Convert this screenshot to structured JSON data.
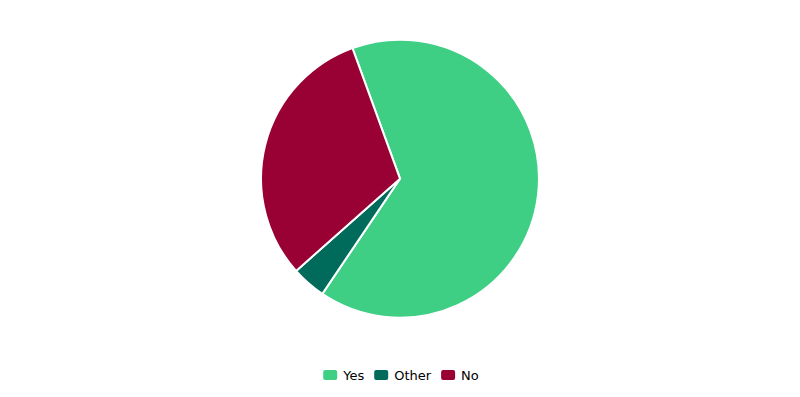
{
  "chart_data": {
    "type": "pie",
    "categories": [
      "Yes",
      "Other",
      "No"
    ],
    "values": [
      65,
      4,
      31
    ],
    "colors": [
      "#3ecf85",
      "#006b5b",
      "#990033"
    ],
    "legend": "bottom",
    "data_labels": false
  }
}
